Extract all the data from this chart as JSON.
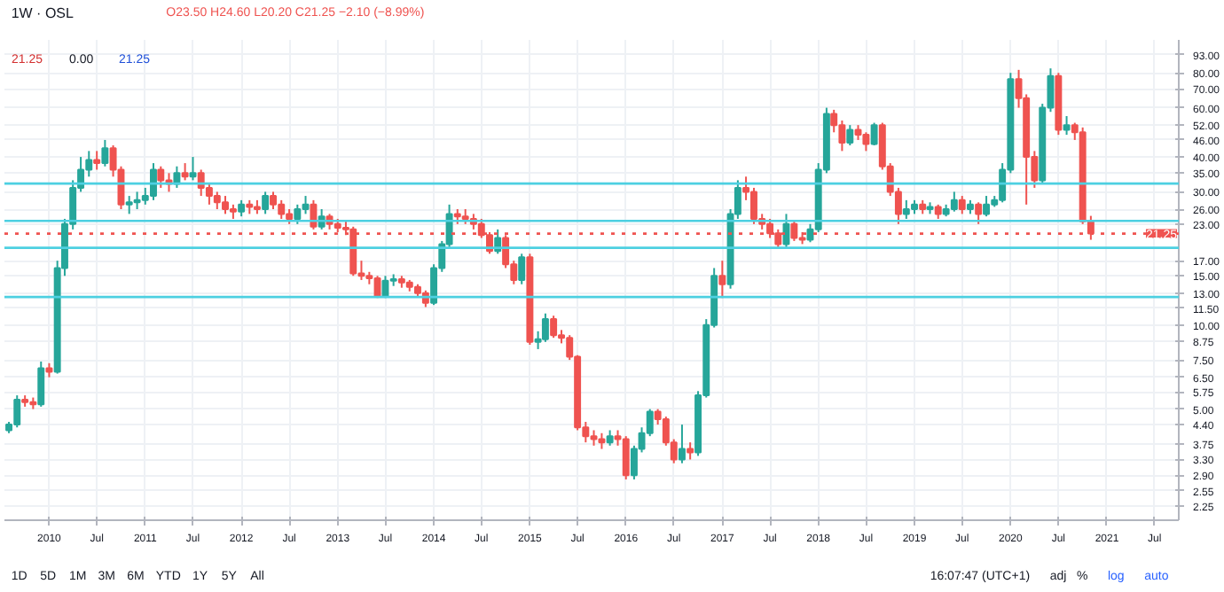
{
  "chart_data": {
    "type": "candlestick",
    "title": "1W · OSL",
    "annotations": [
      "O23.50 H24.60 L20.20 C21.25 −2.10 (−8.99%)",
      "21.25",
      "0.00",
      "21.25",
      "1D",
      "5D",
      "1M",
      "3M",
      "6M",
      "YTD",
      "1Y",
      "5Y",
      "All",
      "16:07:47 (UTC+1)",
      "adj",
      "%",
      "log",
      "auto"
    ],
    "x": [
      "2009-08",
      "2009-09",
      "2009-10",
      "2009-11",
      "2009-12",
      "2010-01",
      "2010-02",
      "2010-03",
      "2010-04",
      "2010-05",
      "2010-06",
      "2010-07",
      "2010-08",
      "2010-09",
      "2010-10",
      "2010-11",
      "2010-12",
      "2011-01",
      "2011-02",
      "2011-03",
      "2011-04",
      "2011-05",
      "2011-06",
      "2011-07",
      "2011-08",
      "2011-09",
      "2011-10",
      "2011-11",
      "2011-12",
      "2012-01",
      "2012-02",
      "2012-03",
      "2012-04",
      "2012-05",
      "2012-06",
      "2012-07",
      "2012-08",
      "2012-09",
      "2012-10",
      "2012-11",
      "2012-12",
      "2013-01",
      "2013-02",
      "2013-03",
      "2013-04",
      "2013-05",
      "2013-06",
      "2013-07",
      "2013-08",
      "2013-09",
      "2013-10",
      "2013-11",
      "2013-12",
      "2014-01",
      "2014-02",
      "2014-03",
      "2014-04",
      "2014-05",
      "2014-06",
      "2014-07",
      "2014-08",
      "2014-09",
      "2014-10",
      "2014-11",
      "2014-12",
      "2015-01",
      "2015-02",
      "2015-03",
      "2015-04",
      "2015-05",
      "2015-06",
      "2015-07",
      "2015-08",
      "2015-09",
      "2015-10",
      "2015-11",
      "2015-12",
      "2016-01",
      "2016-02",
      "2016-03",
      "2016-04",
      "2016-05",
      "2016-06",
      "2016-07",
      "2016-08",
      "2016-09",
      "2016-10",
      "2016-11",
      "2016-12",
      "2017-01",
      "2017-02",
      "2017-03",
      "2017-04",
      "2017-05",
      "2017-06",
      "2017-07",
      "2017-08",
      "2017-09",
      "2017-10",
      "2017-11",
      "2017-12",
      "2018-01",
      "2018-02",
      "2018-03",
      "2018-04",
      "2018-05",
      "2018-06",
      "2018-07",
      "2018-08",
      "2018-09",
      "2018-10",
      "2018-11",
      "2018-12",
      "2019-01",
      "2019-02",
      "2019-03",
      "2019-04",
      "2019-05",
      "2019-06",
      "2019-07",
      "2019-08",
      "2019-09",
      "2019-10",
      "2019-11",
      "2019-12",
      "2020-01",
      "2020-02",
      "2020-03",
      "2020-04",
      "2020-05",
      "2020-06",
      "2020-07",
      "2020-08",
      "2020-09",
      "2020-10",
      "2020-11"
    ],
    "ohlc": [
      [
        4.2,
        4.5,
        4.1,
        4.4
      ],
      [
        4.4,
        5.6,
        4.3,
        5.4
      ],
      [
        5.4,
        5.6,
        5.1,
        5.3
      ],
      [
        5.3,
        5.5,
        5.0,
        5.2
      ],
      [
        5.2,
        7.4,
        5.1,
        7.0
      ],
      [
        7.0,
        7.3,
        6.5,
        6.8
      ],
      [
        6.8,
        17,
        6.7,
        16
      ],
      [
        16,
        24,
        15,
        23
      ],
      [
        23,
        33,
        22,
        31
      ],
      [
        31,
        40,
        30,
        36
      ],
      [
        36,
        42,
        34,
        39
      ],
      [
        39,
        42,
        36,
        38
      ],
      [
        38,
        46,
        37,
        43
      ],
      [
        43,
        44,
        34,
        36
      ],
      [
        36,
        37,
        26,
        27
      ],
      [
        27,
        29,
        25,
        27.5
      ],
      [
        27.5,
        30,
        26,
        28
      ],
      [
        28,
        31,
        27,
        29
      ],
      [
        29,
        38,
        28,
        36
      ],
      [
        36,
        37,
        31,
        33
      ],
      [
        33,
        35,
        30,
        32
      ],
      [
        32,
        37,
        31,
        35
      ],
      [
        35,
        38,
        33,
        34
      ],
      [
        34,
        40,
        33,
        35
      ],
      [
        35,
        36,
        29,
        31
      ],
      [
        31,
        32,
        27,
        29
      ],
      [
        29,
        30,
        26,
        27.5
      ],
      [
        27.5,
        29,
        25,
        26
      ],
      [
        26,
        27,
        24,
        25.5
      ],
      [
        25.5,
        28,
        24.5,
        27
      ],
      [
        27,
        28,
        25,
        26.5
      ],
      [
        26.5,
        28,
        25,
        26
      ],
      [
        26,
        30,
        25,
        29
      ],
      [
        29,
        30,
        26,
        27
      ],
      [
        27,
        28,
        24,
        25
      ],
      [
        25,
        26,
        23,
        24
      ],
      [
        24,
        27,
        23,
        26
      ],
      [
        26,
        29,
        25,
        27
      ],
      [
        27,
        28,
        22,
        22.5
      ],
      [
        22.5,
        26,
        22,
        24.5
      ],
      [
        24.5,
        25,
        22,
        23
      ],
      [
        23,
        24,
        21.5,
        22.3
      ],
      [
        22.3,
        23.5,
        21,
        22
      ],
      [
        22,
        22.5,
        15,
        15.3
      ],
      [
        15.3,
        17,
        14.5,
        15
      ],
      [
        15,
        15.5,
        14,
        14.7
      ],
      [
        14.7,
        15,
        12.5,
        12.7
      ],
      [
        12.7,
        15,
        12.5,
        14.4
      ],
      [
        14.4,
        15.2,
        13.8,
        14.6
      ],
      [
        14.6,
        15,
        13.6,
        14.2
      ],
      [
        14.2,
        14.5,
        13.2,
        13.7
      ],
      [
        13.7,
        14,
        12.6,
        13
      ],
      [
        13,
        13.3,
        11.6,
        12
      ],
      [
        12,
        16.5,
        11.8,
        16
      ],
      [
        16,
        20,
        15.5,
        19.5
      ],
      [
        19.5,
        27,
        19,
        25
      ],
      [
        25,
        26,
        23,
        24.5
      ],
      [
        24.5,
        26,
        23,
        24
      ],
      [
        24,
        25,
        22,
        23
      ],
      [
        23,
        24,
        20.5,
        21
      ],
      [
        21,
        21.5,
        18,
        18.4
      ],
      [
        18.4,
        22,
        18,
        20.5
      ],
      [
        20.5,
        21,
        16,
        16.5
      ],
      [
        16.5,
        17,
        14,
        14.5
      ],
      [
        14.5,
        18,
        14,
        17.5
      ],
      [
        17.5,
        18,
        8.5,
        8.7
      ],
      [
        8.7,
        9.5,
        8.2,
        8.9
      ],
      [
        8.9,
        11,
        8.7,
        10.5
      ],
      [
        10.5,
        10.8,
        9,
        9.2
      ],
      [
        9.2,
        9.6,
        8.6,
        9
      ],
      [
        9,
        9.2,
        7.5,
        7.7
      ],
      [
        7.7,
        7.8,
        4.2,
        4.3
      ],
      [
        4.3,
        4.5,
        3.8,
        4
      ],
      [
        4,
        4.2,
        3.7,
        3.9
      ],
      [
        3.9,
        4.1,
        3.6,
        3.8
      ],
      [
        3.8,
        4.2,
        3.7,
        4
      ],
      [
        4,
        4.2,
        3.7,
        3.9
      ],
      [
        3.9,
        4,
        2.8,
        2.9
      ],
      [
        2.9,
        3.7,
        2.8,
        3.6
      ],
      [
        3.6,
        4.3,
        3.5,
        4.1
      ],
      [
        4.1,
        5.0,
        4.0,
        4.9
      ],
      [
        4.9,
        5.0,
        4.4,
        4.6
      ],
      [
        4.6,
        4.7,
        3.7,
        3.8
      ],
      [
        3.8,
        3.9,
        3.2,
        3.3
      ],
      [
        3.3,
        4.4,
        3.2,
        3.6
      ],
      [
        3.6,
        3.8,
        3.3,
        3.5
      ],
      [
        3.5,
        5.8,
        3.4,
        5.6
      ],
      [
        5.6,
        10.5,
        5.5,
        10
      ],
      [
        10,
        16,
        9.8,
        15
      ],
      [
        15,
        17,
        12.5,
        14
      ],
      [
        14,
        26,
        13.5,
        25
      ],
      [
        25,
        33,
        24,
        31
      ],
      [
        31,
        34,
        28,
        30
      ],
      [
        30,
        31,
        23,
        24
      ],
      [
        24,
        25,
        22,
        23
      ],
      [
        23,
        24,
        20.5,
        21.3
      ],
      [
        21.3,
        22,
        18.8,
        19.5
      ],
      [
        19.5,
        25,
        19,
        23
      ],
      [
        23,
        23.5,
        20,
        20.5
      ],
      [
        20.5,
        21.5,
        19.5,
        20.2
      ],
      [
        20.2,
        23,
        19.8,
        22
      ],
      [
        22,
        38,
        21.5,
        36
      ],
      [
        36,
        60,
        35,
        57
      ],
      [
        57,
        59,
        49,
        52
      ],
      [
        52,
        54,
        42,
        45
      ],
      [
        45,
        52,
        44,
        50
      ],
      [
        50,
        52,
        46,
        48
      ],
      [
        48,
        49,
        42,
        44.5
      ],
      [
        44.5,
        53,
        44,
        52
      ],
      [
        52,
        53,
        36,
        37
      ],
      [
        37,
        38,
        29,
        30
      ],
      [
        30,
        31,
        23,
        25
      ],
      [
        25,
        28,
        24,
        26
      ],
      [
        26,
        28,
        25,
        27
      ],
      [
        27,
        28,
        25,
        26
      ],
      [
        26,
        27.5,
        25,
        26.5
      ],
      [
        26.5,
        27,
        24,
        25
      ],
      [
        25,
        27,
        24.5,
        26
      ],
      [
        26,
        30,
        25.5,
        28
      ],
      [
        28,
        29,
        25,
        26
      ],
      [
        26,
        28,
        25,
        27
      ],
      [
        27,
        27.5,
        23,
        25
      ],
      [
        25,
        29,
        24.5,
        27
      ],
      [
        27,
        29,
        26.5,
        28
      ],
      [
        28,
        38,
        27.5,
        36
      ],
      [
        36,
        80,
        35,
        76
      ],
      [
        76,
        82,
        60,
        65
      ],
      [
        65,
        67,
        27,
        40
      ],
      [
        40,
        42,
        31,
        33
      ],
      [
        33,
        62,
        32,
        60
      ],
      [
        60,
        83,
        58,
        78
      ],
      [
        78,
        80,
        48,
        50
      ],
      [
        50,
        56,
        48,
        52
      ],
      [
        52,
        53,
        46,
        49
      ],
      [
        49,
        51,
        23,
        23.5
      ],
      [
        23.5,
        24.6,
        20.2,
        21.25
      ]
    ],
    "log": "y",
    "ylim": [
      2.0,
      105
    ],
    "yticks": [
      {
        "value": 2.25,
        "label": "2.25"
      },
      {
        "value": 2.55,
        "label": "2.55"
      },
      {
        "value": 2.9,
        "label": "2.90"
      },
      {
        "value": 3.3,
        "label": "3.30"
      },
      {
        "value": 3.75,
        "label": "3.75"
      },
      {
        "value": 4.4,
        "label": "4.40"
      },
      {
        "value": 5,
        "label": "5.00"
      },
      {
        "value": 5.75,
        "label": "5.75"
      },
      {
        "value": 6.5,
        "label": "6.50"
      },
      {
        "value": 7.5,
        "label": "7.50"
      },
      {
        "value": 8.75,
        "label": "8.75"
      },
      {
        "value": 10,
        "label": "10.00"
      },
      {
        "value": 11.5,
        "label": "11.50"
      },
      {
        "value": 13,
        "label": "13.00"
      },
      {
        "value": 15,
        "label": "15.00"
      },
      {
        "value": 17,
        "label": "17.00"
      },
      {
        "value": 23,
        "label": "23.00"
      },
      {
        "value": 26,
        "label": "26.00"
      },
      {
        "value": 30,
        "label": "30.00"
      },
      {
        "value": 35,
        "label": "35.00"
      },
      {
        "value": 40,
        "label": "40.00"
      },
      {
        "value": 46,
        "label": "46.00"
      },
      {
        "value": 52,
        "label": "52.00"
      },
      {
        "value": 60,
        "label": "60.00"
      },
      {
        "value": 70,
        "label": "70.00"
      },
      {
        "value": 80,
        "label": "80.00"
      },
      {
        "value": 93,
        "label": "93.00"
      }
    ],
    "xlim": [
      "2009-07-15",
      "2021-10-01"
    ],
    "xticks": [
      {
        "value": "2010-01",
        "label": "2010"
      },
      {
        "value": "2010-07",
        "label": "Jul"
      },
      {
        "value": "2011-01",
        "label": "2011"
      },
      {
        "value": "2011-07",
        "label": "Jul"
      },
      {
        "value": "2012-01",
        "label": "2012"
      },
      {
        "value": "2012-07",
        "label": "Jul"
      },
      {
        "value": "2013-01",
        "label": "2013"
      },
      {
        "value": "2013-07",
        "label": "Jul"
      },
      {
        "value": "2014-01",
        "label": "2014"
      },
      {
        "value": "2014-07",
        "label": "Jul"
      },
      {
        "value": "2015-01",
        "label": "2015"
      },
      {
        "value": "2015-07",
        "label": "Jul"
      },
      {
        "value": "2016-01",
        "label": "2016"
      },
      {
        "value": "2016-07",
        "label": "Jul"
      },
      {
        "value": "2017-01",
        "label": "2017"
      },
      {
        "value": "2017-07",
        "label": "Jul"
      },
      {
        "value": "2018-01",
        "label": "2018"
      },
      {
        "value": "2018-07",
        "label": "Jul"
      },
      {
        "value": "2019-01",
        "label": "2019"
      },
      {
        "value": "2019-07",
        "label": "Jul"
      },
      {
        "value": "2020-01",
        "label": "2020"
      },
      {
        "value": "2020-07",
        "label": "Jul"
      },
      {
        "value": "2021-01",
        "label": "2021"
      },
      {
        "value": "2021-07",
        "label": "Jul"
      }
    ],
    "ref_lines": [
      {
        "axis": "y",
        "value": 32.1,
        "label": null,
        "color": "#4dd0e1"
      },
      {
        "axis": "y",
        "value": 23.6,
        "label": null,
        "color": "#4dd0e1"
      },
      {
        "axis": "y",
        "value": 18.9,
        "label": null,
        "color": "#4dd0e1"
      },
      {
        "axis": "y",
        "value": 12.6,
        "label": null,
        "color": "#4dd0e1"
      },
      {
        "axis": "y",
        "value": 21.25,
        "label": "21.25",
        "color": "#ef5350",
        "line_style": "dotted"
      }
    ],
    "grid": true
  }
}
